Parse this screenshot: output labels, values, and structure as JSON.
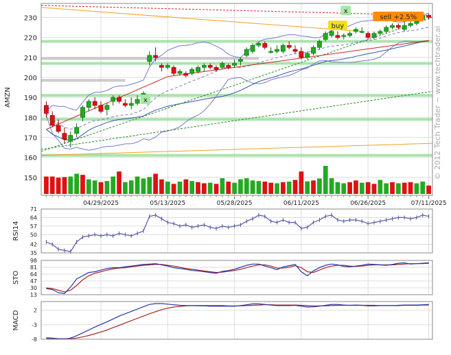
{
  "chart_data": {
    "type": "candlestick",
    "panels": {
      "price": {
        "ylabel": "AMZN",
        "yticks": [
          150,
          160,
          170,
          180,
          190,
          200,
          210,
          220,
          230
        ],
        "ylim": [
          141,
          237
        ],
        "candles": [
          {
            "o": 186,
            "c": 182,
            "h": 188,
            "l": 180
          },
          {
            "o": 181,
            "c": 176,
            "h": 183,
            "l": 175
          },
          {
            "o": 176,
            "c": 173,
            "h": 179,
            "l": 172
          },
          {
            "o": 172,
            "c": 169,
            "h": 175,
            "l": 167
          },
          {
            "o": 168,
            "c": 171,
            "h": 173,
            "l": 165
          },
          {
            "o": 172,
            "c": 175,
            "h": 177,
            "l": 170
          },
          {
            "o": 180,
            "c": 185,
            "h": 186,
            "l": 178
          },
          {
            "o": 185,
            "c": 188,
            "h": 189,
            "l": 183
          },
          {
            "o": 188,
            "c": 186,
            "h": 190,
            "l": 184
          },
          {
            "o": 186,
            "c": 183,
            "h": 188,
            "l": 182
          },
          {
            "o": 184,
            "c": 186,
            "h": 187,
            "l": 181
          },
          {
            "o": 188,
            "c": 190,
            "h": 191,
            "l": 186
          },
          {
            "o": 190,
            "c": 188,
            "h": 191,
            "l": 187
          },
          {
            "o": 187,
            "c": 186,
            "h": 189,
            "l": 185
          },
          {
            "o": 186,
            "c": 187,
            "h": 190,
            "l": 184
          },
          {
            "o": 187,
            "c": 189,
            "h": 191,
            "l": 186
          },
          {
            "o": 190,
            "c": 192,
            "h": 193,
            "l": 188
          },
          {
            "o": 208,
            "c": 211,
            "h": 213,
            "l": 206
          },
          {
            "o": 211,
            "c": 210,
            "h": 215,
            "l": 208
          },
          {
            "o": 206,
            "c": 205,
            "h": 207,
            "l": 203
          },
          {
            "o": 205,
            "c": 206,
            "h": 207,
            "l": 204
          },
          {
            "o": 205,
            "c": 202,
            "h": 206,
            "l": 201
          },
          {
            "o": 202,
            "c": 203,
            "h": 204,
            "l": 201
          },
          {
            "o": 202,
            "c": 201,
            "h": 203,
            "l": 200
          },
          {
            "o": 202,
            "c": 204,
            "h": 205,
            "l": 201
          },
          {
            "o": 203,
            "c": 205,
            "h": 206,
            "l": 202
          },
          {
            "o": 205,
            "c": 206,
            "h": 207,
            "l": 203
          },
          {
            "o": 206,
            "c": 205,
            "h": 207,
            "l": 204
          },
          {
            "o": 205,
            "c": 204,
            "h": 206,
            "l": 203
          },
          {
            "o": 205,
            "c": 207,
            "h": 208,
            "l": 204
          },
          {
            "o": 206,
            "c": 205,
            "h": 207,
            "l": 204
          },
          {
            "o": 206,
            "c": 207,
            "h": 209,
            "l": 205
          },
          {
            "o": 208,
            "c": 209,
            "h": 210,
            "l": 206
          },
          {
            "o": 211,
            "c": 214,
            "h": 215,
            "l": 210
          },
          {
            "o": 213,
            "c": 216,
            "h": 217,
            "l": 212
          },
          {
            "o": 216,
            "c": 217,
            "h": 218,
            "l": 215
          },
          {
            "o": 217,
            "c": 215,
            "h": 218,
            "l": 214
          },
          {
            "o": 213,
            "c": 213,
            "h": 215,
            "l": 212
          },
          {
            "o": 213,
            "c": 214,
            "h": 216,
            "l": 212
          },
          {
            "o": 213,
            "c": 216,
            "h": 217,
            "l": 212
          },
          {
            "o": 216,
            "c": 215,
            "h": 218,
            "l": 214
          },
          {
            "o": 214,
            "c": 213,
            "h": 216,
            "l": 212
          },
          {
            "o": 213,
            "c": 210,
            "h": 215,
            "l": 209
          },
          {
            "o": 210,
            "c": 212,
            "h": 213,
            "l": 209
          },
          {
            "o": 212,
            "c": 215,
            "h": 216,
            "l": 211
          },
          {
            "o": 215,
            "c": 218,
            "h": 219,
            "l": 214
          },
          {
            "o": 219,
            "c": 222,
            "h": 223,
            "l": 218
          },
          {
            "o": 221,
            "c": 223,
            "h": 224,
            "l": 220
          },
          {
            "o": 221,
            "c": 220,
            "h": 223,
            "l": 219
          },
          {
            "o": 221,
            "c": 221,
            "h": 222,
            "l": 219
          },
          {
            "o": 221,
            "c": 222,
            "h": 223,
            "l": 220
          },
          {
            "o": 223,
            "c": 224,
            "h": 225,
            "l": 222
          },
          {
            "o": 223,
            "c": 223,
            "h": 225,
            "l": 222
          },
          {
            "o": 222,
            "c": 220,
            "h": 223,
            "l": 219
          },
          {
            "o": 220,
            "c": 222,
            "h": 223,
            "l": 219
          },
          {
            "o": 222,
            "c": 223,
            "h": 224,
            "l": 221
          },
          {
            "o": 223,
            "c": 225,
            "h": 226,
            "l": 222
          },
          {
            "o": 225,
            "c": 226,
            "h": 227,
            "l": 224
          },
          {
            "o": 226,
            "c": 225,
            "h": 227,
            "l": 224
          },
          {
            "o": 224,
            "c": 226,
            "h": 228,
            "l": 223
          },
          {
            "o": 226,
            "c": 227,
            "h": 228,
            "l": 225
          },
          {
            "o": 227,
            "c": 228,
            "h": 229,
            "l": 226
          },
          {
            "o": 229,
            "c": 231,
            "h": 232,
            "l": 228
          },
          {
            "o": 231,
            "c": 230,
            "h": 232,
            "l": 229
          }
        ],
        "volume": [
          {
            "v": 0.62,
            "up": false
          },
          {
            "v": 0.62,
            "up": false
          },
          {
            "v": 0.58,
            "up": false
          },
          {
            "v": 0.6,
            "up": false
          },
          {
            "v": 0.62,
            "up": true
          },
          {
            "v": 0.72,
            "up": true
          },
          {
            "v": 0.68,
            "up": false
          },
          {
            "v": 0.52,
            "up": true
          },
          {
            "v": 0.48,
            "up": true
          },
          {
            "v": 0.42,
            "up": false
          },
          {
            "v": 0.46,
            "up": true
          },
          {
            "v": 0.62,
            "up": true
          },
          {
            "v": 0.8,
            "up": false
          },
          {
            "v": 0.42,
            "up": true
          },
          {
            "v": 0.48,
            "up": true
          },
          {
            "v": 0.62,
            "up": true
          },
          {
            "v": 0.55,
            "up": true
          },
          {
            "v": 0.6,
            "up": true
          },
          {
            "v": 0.72,
            "up": false
          },
          {
            "v": 0.52,
            "up": false
          },
          {
            "v": 0.44,
            "up": true
          },
          {
            "v": 0.36,
            "up": false
          },
          {
            "v": 0.44,
            "up": true
          },
          {
            "v": 0.52,
            "up": false
          },
          {
            "v": 0.46,
            "up": true
          },
          {
            "v": 0.42,
            "up": false
          },
          {
            "v": 0.38,
            "up": false
          },
          {
            "v": 0.4,
            "up": true
          },
          {
            "v": 0.36,
            "up": false
          },
          {
            "v": 0.56,
            "up": true
          },
          {
            "v": 0.44,
            "up": false
          },
          {
            "v": 0.4,
            "up": true
          },
          {
            "v": 0.52,
            "up": true
          },
          {
            "v": 0.56,
            "up": true
          },
          {
            "v": 0.48,
            "up": true
          },
          {
            "v": 0.46,
            "up": true
          },
          {
            "v": 0.44,
            "up": false
          },
          {
            "v": 0.4,
            "up": false
          },
          {
            "v": 0.38,
            "up": true
          },
          {
            "v": 0.42,
            "up": false
          },
          {
            "v": 0.44,
            "up": true
          },
          {
            "v": 0.5,
            "up": false
          },
          {
            "v": 0.8,
            "up": false
          },
          {
            "v": 0.45,
            "up": true
          },
          {
            "v": 0.48,
            "up": false
          },
          {
            "v": 0.55,
            "up": true
          },
          {
            "v": 1.0,
            "up": true
          },
          {
            "v": 0.56,
            "up": true
          },
          {
            "v": 0.42,
            "up": true
          },
          {
            "v": 0.38,
            "up": true
          },
          {
            "v": 0.42,
            "up": false
          },
          {
            "v": 0.48,
            "up": false
          },
          {
            "v": 0.4,
            "up": true
          },
          {
            "v": 0.42,
            "up": false
          },
          {
            "v": 0.36,
            "up": false
          },
          {
            "v": 0.5,
            "up": true
          },
          {
            "v": 0.38,
            "up": true
          },
          {
            "v": 0.42,
            "up": false
          },
          {
            "v": 0.38,
            "up": true
          },
          {
            "v": 0.4,
            "up": false
          },
          {
            "v": 0.42,
            "up": false
          },
          {
            "v": 0.38,
            "up": true
          },
          {
            "v": 0.44,
            "up": true
          },
          {
            "v": 0.3,
            "up": false
          }
        ],
        "hlines": [
          {
            "y": 218,
            "color": "#8fdc8f"
          },
          {
            "y": 207,
            "color": "#8fdc8f"
          },
          {
            "y": 191,
            "color": "#8fdc8f"
          },
          {
            "y": 179,
            "color": "#8fdc8f"
          },
          {
            "y": 161,
            "color": "#8fdc8f"
          },
          {
            "y": 209.5,
            "color": "#bbbbbb"
          },
          {
            "y": 198.5,
            "color": "#bbbbbb"
          }
        ],
        "annotations": [
          {
            "text": "x",
            "type": "marker"
          },
          {
            "text": "x",
            "type": "marker"
          },
          {
            "text": "buy",
            "type": "signal"
          },
          {
            "text": "sell +2.5%",
            "type": "signal"
          }
        ]
      },
      "rsi": {
        "label": "RSI14",
        "yticks": [
          35,
          42,
          50,
          57,
          64,
          71
        ],
        "ylim": [
          35,
          71
        ],
        "values": [
          44,
          42,
          38,
          37,
          36,
          44,
          48,
          49,
          50,
          49,
          50,
          49,
          51,
          50,
          49,
          51,
          53,
          65,
          66,
          63,
          60,
          59,
          57,
          58,
          56,
          57,
          58,
          56,
          55,
          57,
          56,
          57,
          58,
          61,
          63,
          66,
          65,
          61,
          60,
          62,
          60,
          60,
          55,
          56,
          60,
          62,
          65,
          66,
          62,
          61,
          62,
          62,
          61,
          59,
          60,
          61,
          62,
          63,
          64,
          64,
          63,
          64,
          66,
          65
        ]
      },
      "sto": {
        "label": "STO",
        "yticks": [
          13,
          30,
          47,
          64,
          81,
          98
        ],
        "ylim": [
          13,
          98
        ],
        "k": [
          28,
          26,
          18,
          16,
          32,
          52,
          60,
          68,
          70,
          74,
          78,
          80,
          80,
          82,
          84,
          86,
          88,
          89,
          90,
          87,
          84,
          80,
          78,
          76,
          73,
          72,
          70,
          68,
          66,
          71,
          73,
          76,
          81,
          86,
          89,
          89,
          84,
          80,
          75,
          82,
          85,
          88,
          70,
          60,
          72,
          80,
          86,
          89,
          87,
          83,
          82,
          84,
          86,
          89,
          88,
          87,
          86,
          88,
          91,
          92,
          89,
          90,
          91,
          92
        ],
        "d": [
          30,
          28,
          24,
          20,
          24,
          36,
          50,
          60,
          66,
          70,
          74,
          77,
          79,
          80,
          82,
          84,
          86,
          87,
          88,
          88,
          86,
          84,
          81,
          78,
          76,
          74,
          72,
          70,
          68,
          69,
          71,
          73,
          76,
          80,
          84,
          87,
          87,
          84,
          79,
          79,
          81,
          85,
          80,
          70,
          68,
          74,
          80,
          84,
          86,
          86,
          84,
          83,
          84,
          86,
          87,
          87,
          87,
          87,
          88,
          89,
          90,
          90,
          90,
          91
        ]
      },
      "macd": {
        "label": "MACD",
        "yticks": [
          -8,
          -3,
          2
        ],
        "ylim": [
          -8,
          5
        ],
        "macd": [
          -7.5,
          -7.6,
          -7.8,
          -7.9,
          -7.6,
          -6.8,
          -5.8,
          -4.8,
          -3.8,
          -2.9,
          -2.0,
          -1.0,
          0.0,
          0.8,
          1.6,
          2.4,
          3.2,
          4.0,
          4.3,
          4.3,
          4.1,
          3.9,
          3.7,
          3.6,
          3.6,
          3.5,
          3.5,
          3.4,
          3.4,
          3.4,
          3.4,
          3.4,
          3.6,
          3.9,
          4.2,
          4.2,
          4.0,
          3.8,
          3.6,
          3.6,
          3.6,
          3.7,
          3.4,
          3.1,
          3.2,
          3.4,
          3.7,
          4.0,
          4.0,
          3.8,
          3.7,
          3.8,
          3.7,
          3.5,
          3.5,
          3.6,
          3.6,
          3.6,
          3.7,
          3.8,
          3.8,
          3.8,
          3.9,
          4.0
        ],
        "signal": [
          -7.8,
          -7.8,
          -7.8,
          -7.8,
          -7.8,
          -7.6,
          -7.2,
          -6.7,
          -6.1,
          -5.5,
          -4.8,
          -4.0,
          -3.2,
          -2.4,
          -1.6,
          -0.8,
          0.0,
          0.8,
          1.5,
          2.2,
          2.7,
          3.1,
          3.3,
          3.5,
          3.6,
          3.6,
          3.6,
          3.6,
          3.6,
          3.6,
          3.5,
          3.5,
          3.5,
          3.6,
          3.7,
          3.8,
          3.9,
          3.9,
          3.8,
          3.8,
          3.8,
          3.8,
          3.7,
          3.6,
          3.5,
          3.5,
          3.5,
          3.6,
          3.7,
          3.7,
          3.7,
          3.7,
          3.7,
          3.7,
          3.7,
          3.6,
          3.6,
          3.6,
          3.6,
          3.7,
          3.7,
          3.7,
          3.8,
          3.8
        ]
      }
    },
    "x_tick_labels": [
      "04/29/2025",
      "05/13/2025",
      "05/28/2025",
      "06/11/2025",
      "06/26/2025",
      "07/11/2025"
    ],
    "grid": true,
    "watermark": "© 2012 Tech Trader ~ www.techtrader.ai"
  },
  "colors": {
    "up": "#22aa22",
    "down": "#dd1111",
    "upOutline": "#006600",
    "downOutline": "#880000",
    "bollinger": "#7777cc",
    "ma_red": "#cc2222",
    "ma_blue": "#3355aa",
    "trend_orange": "#f0a020",
    "trend_green": "#228822",
    "resistance_red": "#dd2222",
    "rsi_line": "#5555aa",
    "sto_k": "#2233aa",
    "sto_d": "#aa2222",
    "macd_line": "#2233aa",
    "signal_line": "#aa2222",
    "sell_box": "#ff8c00",
    "buy_box": "#f0e020",
    "x_box": "#a8e8a8"
  }
}
